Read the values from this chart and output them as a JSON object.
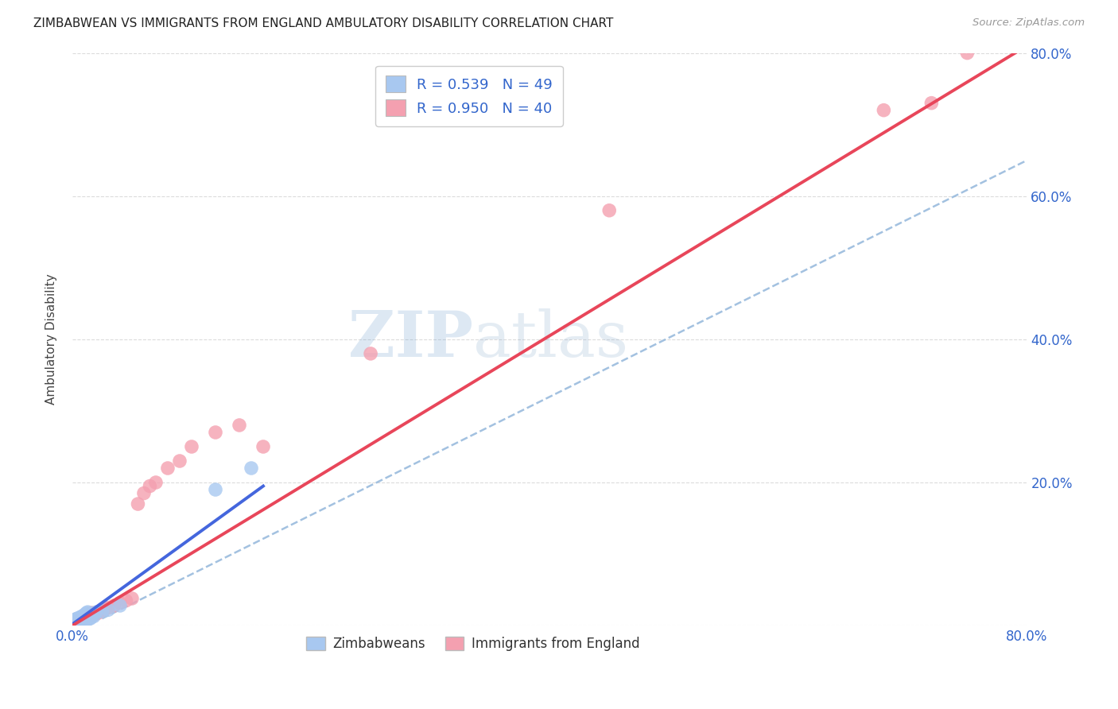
{
  "title": "ZIMBABWEAN VS IMMIGRANTS FROM ENGLAND AMBULATORY DISABILITY CORRELATION CHART",
  "source": "Source: ZipAtlas.com",
  "ylabel": "Ambulatory Disability",
  "xlim": [
    0.0,
    0.8
  ],
  "ylim": [
    0.0,
    0.8
  ],
  "zimbabwean_color": "#a8c8f0",
  "england_color": "#f4a0b0",
  "zimbabwean_line_color": "#4466dd",
  "england_line_color": "#e8465a",
  "dashed_line_color": "#99bbdd",
  "watermark_zip": "ZIP",
  "watermark_atlas": "atlas",
  "legend_zim_label": "R = 0.539   N = 49",
  "legend_eng_label": "R = 0.950   N = 40",
  "bottom_legend_zim": "Zimbabweans",
  "bottom_legend_eng": "Immigrants from England",
  "zimbabwean_scatter_x": [
    0.001,
    0.002,
    0.002,
    0.003,
    0.003,
    0.003,
    0.004,
    0.004,
    0.004,
    0.005,
    0.005,
    0.005,
    0.006,
    0.006,
    0.007,
    0.007,
    0.008,
    0.008,
    0.009,
    0.009,
    0.01,
    0.01,
    0.011,
    0.011,
    0.012,
    0.013,
    0.014,
    0.015,
    0.016,
    0.018,
    0.002,
    0.003,
    0.004,
    0.005,
    0.006,
    0.007,
    0.008,
    0.009,
    0.01,
    0.011,
    0.012,
    0.013,
    0.02,
    0.025,
    0.03,
    0.04,
    0.12,
    0.15,
    0.001
  ],
  "zimbabwean_scatter_y": [
    0.002,
    0.003,
    0.004,
    0.003,
    0.004,
    0.005,
    0.004,
    0.005,
    0.006,
    0.004,
    0.005,
    0.006,
    0.005,
    0.006,
    0.005,
    0.007,
    0.006,
    0.007,
    0.006,
    0.008,
    0.007,
    0.009,
    0.007,
    0.009,
    0.008,
    0.009,
    0.01,
    0.01,
    0.012,
    0.013,
    0.008,
    0.009,
    0.01,
    0.01,
    0.011,
    0.012,
    0.013,
    0.013,
    0.015,
    0.016,
    0.018,
    0.019,
    0.019,
    0.02,
    0.022,
    0.028,
    0.19,
    0.22,
    0.001
  ],
  "england_scatter_x": [
    0.002,
    0.003,
    0.004,
    0.005,
    0.006,
    0.007,
    0.008,
    0.009,
    0.01,
    0.011,
    0.012,
    0.013,
    0.014,
    0.015,
    0.016,
    0.018,
    0.02,
    0.022,
    0.025,
    0.028,
    0.03,
    0.035,
    0.04,
    0.045,
    0.05,
    0.055,
    0.06,
    0.065,
    0.07,
    0.08,
    0.09,
    0.1,
    0.12,
    0.14,
    0.16,
    0.25,
    0.45,
    0.68,
    0.72,
    0.75
  ],
  "england_scatter_y": [
    0.003,
    0.004,
    0.005,
    0.006,
    0.007,
    0.008,
    0.009,
    0.01,
    0.011,
    0.012,
    0.013,
    0.014,
    0.015,
    0.016,
    0.018,
    0.015,
    0.017,
    0.018,
    0.022,
    0.024,
    0.025,
    0.028,
    0.032,
    0.035,
    0.038,
    0.17,
    0.185,
    0.195,
    0.2,
    0.22,
    0.23,
    0.25,
    0.27,
    0.28,
    0.25,
    0.38,
    0.58,
    0.72,
    0.73,
    0.8
  ],
  "zim_line_x0": 0.0,
  "zim_line_x1": 0.16,
  "zim_line_y0": 0.002,
  "zim_line_y1": 0.195,
  "eng_line_x0": 0.0,
  "eng_line_x1": 0.8,
  "eng_line_y0": 0.0,
  "eng_line_y1": 0.81,
  "dash_line_x0": 0.025,
  "dash_line_x1": 0.8,
  "dash_line_y0": 0.01,
  "dash_line_y1": 0.65,
  "background_color": "#ffffff",
  "grid_color": "#cccccc"
}
